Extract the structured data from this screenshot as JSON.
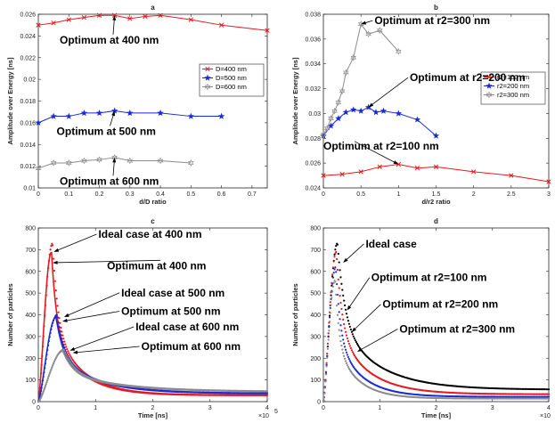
{
  "chart_data": [
    {
      "panel": "a",
      "type": "line",
      "title": "a",
      "xlabel": "d/D ratio",
      "ylabel": "Amplitude over Energy [ns]",
      "xlim": [
        0,
        0.75
      ],
      "ylim": [
        0.01,
        0.026
      ],
      "xticks": [
        0,
        0.1,
        0.2,
        0.3,
        0.4,
        0.5,
        0.6,
        0.7
      ],
      "yticks": [
        0.01,
        0.012,
        0.014,
        0.016,
        0.018,
        0.02,
        0.022,
        0.024,
        0.026
      ],
      "legend": "right",
      "series": [
        {
          "name": "D=400 nm",
          "color": "#e8181c",
          "marker": "x",
          "x": [
            0,
            0.05,
            0.1,
            0.15,
            0.2,
            0.25,
            0.3,
            0.35,
            0.4,
            0.5,
            0.6,
            0.75
          ],
          "y": [
            0.025,
            0.0252,
            0.0255,
            0.0257,
            0.0259,
            0.0259,
            0.0256,
            0.0258,
            0.0259,
            0.0255,
            0.025,
            0.0245
          ]
        },
        {
          "name": "D=500 nm",
          "color": "#1a2bd6",
          "marker": "star",
          "x": [
            0,
            0.05,
            0.1,
            0.15,
            0.2,
            0.25,
            0.3,
            0.4,
            0.5,
            0.6
          ],
          "y": [
            0.016,
            0.0166,
            0.0166,
            0.0169,
            0.0169,
            0.0171,
            0.0169,
            0.0169,
            0.0166,
            0.0166
          ]
        },
        {
          "name": "D=600 nm",
          "color": "#8c8c8c",
          "marker": "hex",
          "x": [
            0,
            0.05,
            0.1,
            0.15,
            0.2,
            0.25,
            0.3,
            0.4,
            0.5
          ],
          "y": [
            0.0118,
            0.0123,
            0.0123,
            0.0125,
            0.0126,
            0.0128,
            0.0125,
            0.0125,
            0.0123
          ]
        }
      ],
      "annotations": [
        {
          "text": "Optimum at 400 nm",
          "x": 0.25,
          "y": 0.0259,
          "tx": 0.07,
          "ty": 0.0233
        },
        {
          "text": "Optimum at 500 nm",
          "x": 0.25,
          "y": 0.0171,
          "tx": 0.06,
          "ty": 0.0149
        },
        {
          "text": "Optimum at 600 nm",
          "x": 0.25,
          "y": 0.0128,
          "tx": 0.07,
          "ty": 0.0103
        }
      ]
    },
    {
      "panel": "b",
      "type": "line",
      "title": "b",
      "xlabel": "d/r2 ratio",
      "ylabel": "Amplitude over Energy [ns]",
      "xlim": [
        0,
        3
      ],
      "ylim": [
        0.024,
        0.038
      ],
      "xticks": [
        0,
        0.5,
        1,
        1.5,
        2,
        2.5,
        3
      ],
      "yticks": [
        0.024,
        0.026,
        0.028,
        0.03,
        0.032,
        0.034,
        0.036,
        0.038
      ],
      "ytickLabels": [
        "0.024",
        "0.026",
        "0.028",
        "0.03",
        "0.032",
        "0.034",
        "0.036",
        "0.038"
      ],
      "legend": "right",
      "series": [
        {
          "name": "r2=100 nm",
          "color": "#e8181c",
          "marker": "x",
          "x": [
            0,
            0.25,
            0.5,
            0.75,
            1,
            1.25,
            1.5,
            2,
            2.5,
            3
          ],
          "y": [
            0.025,
            0.0251,
            0.0253,
            0.0257,
            0.0259,
            0.0256,
            0.0257,
            0.0253,
            0.025,
            0.0245
          ]
        },
        {
          "name": "r2=200 nm",
          "color": "#1a2bd6",
          "marker": "star",
          "x": [
            0,
            0.1,
            0.2,
            0.3,
            0.4,
            0.5,
            0.6,
            0.7,
            0.8,
            1,
            1.25,
            1.5
          ],
          "y": [
            0.0282,
            0.029,
            0.0296,
            0.0301,
            0.0303,
            0.0302,
            0.0305,
            0.0301,
            0.0302,
            0.03,
            0.0295,
            0.0282
          ]
        },
        {
          "name": "r2=300 nm",
          "color": "#8c8c8c",
          "marker": "hex",
          "x": [
            0,
            0.05,
            0.1,
            0.15,
            0.2,
            0.25,
            0.3,
            0.4,
            0.5,
            0.6,
            0.75,
            1
          ],
          "y": [
            0.0283,
            0.0288,
            0.0296,
            0.0302,
            0.0309,
            0.0318,
            0.0333,
            0.0345,
            0.0372,
            0.0364,
            0.0367,
            0.035
          ]
        }
      ],
      "annotations": [
        {
          "text": "Optimum at r2=300 nm",
          "x": 0.5,
          "y": 0.0372,
          "tx": 0.68,
          "ty": 0.0372
        },
        {
          "text": "Optimum at r2=200 nm",
          "x": 0.6,
          "y": 0.0305,
          "tx": 1.15,
          "ty": 0.0326
        },
        {
          "text": "Optimum at r2=100 nm",
          "x": 1.0,
          "y": 0.0259,
          "tx": 0.0,
          "ty": 0.0271
        }
      ]
    },
    {
      "panel": "c",
      "type": "line",
      "title": "c",
      "xlabel": "Time [ns]",
      "ylabel": "Number of particles",
      "xExponent": "×10",
      "xExponentPow": "5",
      "xlim": [
        0,
        4
      ],
      "ylim": [
        0,
        800
      ],
      "xticks": [
        0,
        1,
        2,
        3,
        4
      ],
      "yticks": [
        0,
        100,
        200,
        300,
        400,
        500,
        600,
        700,
        800
      ],
      "curves": [
        {
          "color": "#e8181c",
          "kind": "dots",
          "peak": 730,
          "tp": 0.25,
          "tail": 30,
          "ws": 0.09
        },
        {
          "color": "#e8181c",
          "kind": "line",
          "peak": 690,
          "tp": 0.23,
          "tail": 28,
          "ws": 0.09
        },
        {
          "color": "#1a2bd6",
          "kind": "dots",
          "peak": 400,
          "tp": 0.33,
          "tail": 38,
          "ws": 0.13
        },
        {
          "color": "#1a2bd6",
          "kind": "line",
          "peak": 390,
          "tp": 0.31,
          "tail": 36,
          "ws": 0.13
        },
        {
          "color": "#8c8c8c",
          "kind": "dots",
          "peak": 240,
          "tp": 0.45,
          "tail": 46,
          "ws": 0.18
        },
        {
          "color": "#8c8c8c",
          "kind": "line",
          "peak": 232,
          "tp": 0.43,
          "tail": 44,
          "ws": 0.18
        }
      ],
      "annotations": [
        {
          "text": "Ideal case at 400 nm",
          "x": 0.27,
          "y": 690,
          "tx": 1.05,
          "ty": 755
        },
        {
          "text": "Optimum at 400 nm",
          "x": 0.25,
          "y": 640,
          "tx": 1.2,
          "ty": 610
        },
        {
          "text": "Ideal case at 500 nm",
          "x": 0.45,
          "y": 390,
          "tx": 1.45,
          "ty": 485
        },
        {
          "text": "Optimum at 500 nm",
          "x": 0.42,
          "y": 370,
          "tx": 1.45,
          "ty": 400
        },
        {
          "text": "Ideal case at 600 nm",
          "x": 0.55,
          "y": 235,
          "tx": 1.7,
          "ty": 328
        },
        {
          "text": "Optimum at 600 nm",
          "x": 0.6,
          "y": 225,
          "tx": 1.8,
          "ty": 238
        }
      ]
    },
    {
      "panel": "d",
      "type": "line",
      "title": "d",
      "xlabel": "Time [ns]",
      "ylabel": "Number of particles",
      "xExponent": "×10",
      "xExponentPow": "5",
      "xlim": [
        0,
        4
      ],
      "ylim": [
        0,
        800
      ],
      "xticks": [
        0,
        1,
        2,
        3,
        4
      ],
      "yticks": [
        0,
        100,
        200,
        300,
        400,
        500,
        600,
        700,
        800
      ],
      "curves": [
        {
          "color": "#000000",
          "kind": "dots",
          "peak": 730,
          "tp": 0.25,
          "tail": 55,
          "ws": 0.13
        },
        {
          "color": "#e8181c",
          "kind": "dots",
          "peak": 690,
          "tp": 0.23,
          "tail": 34,
          "ws": 0.1
        },
        {
          "color": "#1a2bd6",
          "kind": "dots",
          "peak": 620,
          "tp": 0.22,
          "tail": 22,
          "ws": 0.08
        },
        {
          "color": "#8c8c8c",
          "kind": "dots",
          "peak": 560,
          "tp": 0.21,
          "tail": 14,
          "ws": 0.07
        }
      ],
      "annotations": [
        {
          "text": "Ideal case",
          "x": 0.35,
          "y": 640,
          "tx": 0.75,
          "ty": 710
        },
        {
          "text": "Optimum at r2=100 nm",
          "x": 0.42,
          "y": 420,
          "tx": 0.85,
          "ty": 555
        },
        {
          "text": "Optimum at r2=200 nm",
          "x": 0.5,
          "y": 320,
          "tx": 1.05,
          "ty": 432
        },
        {
          "text": "Optimum at r2=300 nm",
          "x": 0.6,
          "y": 230,
          "tx": 1.35,
          "ty": 318
        }
      ]
    }
  ]
}
